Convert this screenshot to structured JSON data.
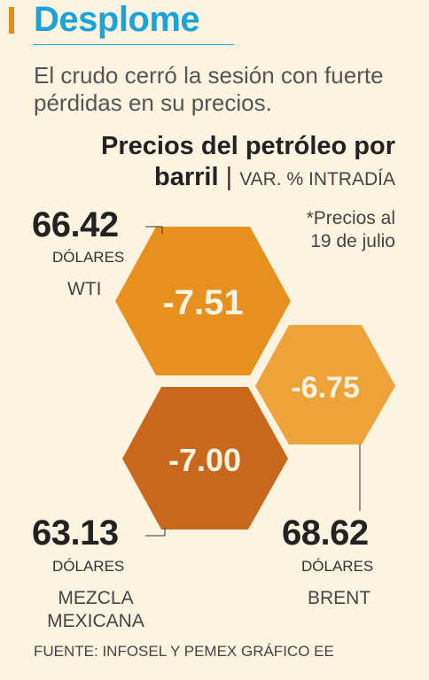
{
  "header": {
    "title": "Desplome",
    "subtitle": "El crudo cerró la sesión con fuerte pérdidas en su precios."
  },
  "chart_data": {
    "type": "hexagon-values",
    "title_line1": "Precios del petróleo por",
    "title_line2": "barril",
    "title_separator": "|",
    "title_unit": "VAR. % INTRADÍA",
    "note_line1": "*Precios al",
    "note_line2": "19 de julio",
    "unit_label": "DÓLARES",
    "series": [
      {
        "name": "WTI",
        "price": "66.42",
        "change": "-7.51",
        "color": "#e8901e"
      },
      {
        "name": "BRENT",
        "price": "68.62",
        "change": "-6.75",
        "color": "#eda23a"
      },
      {
        "name_line1": "MEZCLA",
        "name_line2": "MEXICANA",
        "price": "63.13",
        "change": "-7.00",
        "color": "#c9681c"
      }
    ]
  },
  "footer": {
    "source": "FUENTE: INFOSEL Y PEMEX GRÁFICO EE"
  }
}
